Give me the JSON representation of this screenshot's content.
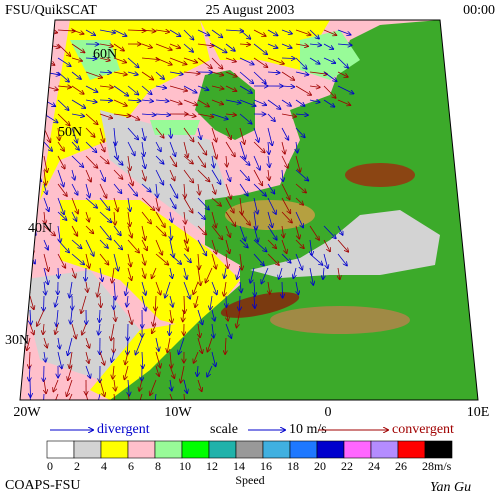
{
  "header": {
    "left": "FSU/QuikSCAT",
    "date": "25 August 2003",
    "time": "00:00"
  },
  "map": {
    "lat_labels": [
      "60N",
      "50N",
      "40N",
      "30N"
    ],
    "lon_labels": [
      "20W",
      "10W",
      "0",
      "10E"
    ]
  },
  "legend": {
    "divergent": "divergent",
    "scale": "scale",
    "scale_value": "10 m/s",
    "convergent": "convergent"
  },
  "colorbar": {
    "labels": [
      "0",
      "2",
      "4",
      "6",
      "8",
      "10",
      "12",
      "14",
      "16",
      "18",
      "20",
      "22",
      "24",
      "26",
      "28"
    ],
    "unit": "m/s",
    "title": "Speed",
    "colors": [
      "#ffffff",
      "#d3d3d3",
      "#ffff00",
      "#ffc0cb",
      "#98fb98",
      "#00ff00",
      "#20b2aa",
      "#999999",
      "#40b0e0",
      "#1e78ff",
      "#0000cd",
      "#ff66ff",
      "#b48cff",
      "#ff0000",
      "#000000"
    ]
  },
  "footer": {
    "left": "COAPS-FSU",
    "right": "Yan Gu"
  }
}
